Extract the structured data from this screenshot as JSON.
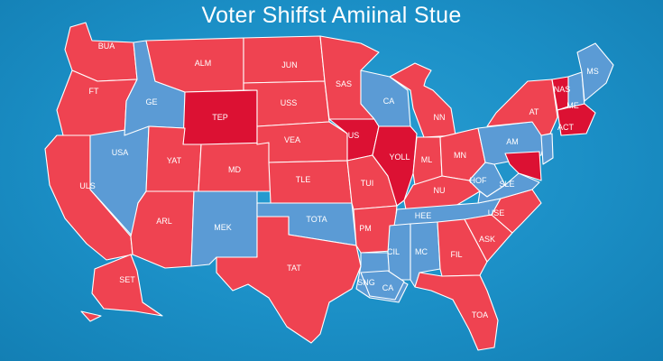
{
  "title": "Voter Shiffst Amiinal Stue",
  "colors": {
    "background": "#1a8fc3",
    "republican": "#ef4351",
    "republican_strong": "#dc1133",
    "democrat": "#5b9bd5",
    "border": "#ffffff"
  },
  "states": [
    {
      "id": "wa",
      "label": "BUA",
      "party": "rep"
    },
    {
      "id": "or",
      "label": "FT",
      "party": "rep"
    },
    {
      "id": "ca",
      "label": "ULS",
      "party": "rep"
    },
    {
      "id": "id",
      "label": "GE",
      "party": "dem"
    },
    {
      "id": "nv",
      "label": "USA",
      "party": "dem"
    },
    {
      "id": "mt",
      "label": "ALM",
      "party": "rep"
    },
    {
      "id": "wy",
      "label": "TEP",
      "party": "rep-strong"
    },
    {
      "id": "ut",
      "label": "YAT",
      "party": "rep"
    },
    {
      "id": "az",
      "label": "ARL",
      "party": "rep"
    },
    {
      "id": "co",
      "label": "MD",
      "party": "rep"
    },
    {
      "id": "nm",
      "label": "MEK",
      "party": "dem"
    },
    {
      "id": "nd",
      "label": "JUN",
      "party": "rep"
    },
    {
      "id": "sd",
      "label": "USS",
      "party": "rep"
    },
    {
      "id": "ne",
      "label": "VEA",
      "party": "rep"
    },
    {
      "id": "ks",
      "label": "TLE",
      "party": "rep"
    },
    {
      "id": "ok",
      "label": "TOTA",
      "party": "dem"
    },
    {
      "id": "tx",
      "label": "TAT",
      "party": "rep"
    },
    {
      "id": "mn",
      "label": "SAS",
      "party": "rep"
    },
    {
      "id": "ia",
      "label": "US",
      "party": "rep-strong"
    },
    {
      "id": "mo",
      "label": "TUI",
      "party": "rep"
    },
    {
      "id": "ar",
      "label": "PM",
      "party": "rep"
    },
    {
      "id": "la",
      "label": "SNG",
      "party": "dem"
    },
    {
      "id": "wi",
      "label": "CA",
      "party": "dem"
    },
    {
      "id": "il",
      "label": "YOLL",
      "party": "rep-strong"
    },
    {
      "id": "mi",
      "label": "NN",
      "party": "rep"
    },
    {
      "id": "in",
      "label": "ML",
      "party": "rep"
    },
    {
      "id": "oh",
      "label": "MN",
      "party": "rep"
    },
    {
      "id": "ky",
      "label": "NU",
      "party": "rep"
    },
    {
      "id": "tn",
      "label": "HEE",
      "party": "dem"
    },
    {
      "id": "ms",
      "label": "CIL",
      "party": "dem"
    },
    {
      "id": "al",
      "label": "MC",
      "party": "dem"
    },
    {
      "id": "ga",
      "label": "FIL",
      "party": "rep"
    },
    {
      "id": "fl",
      "label": "TOA",
      "party": "rep"
    },
    {
      "id": "sc",
      "label": "ASK",
      "party": "rep"
    },
    {
      "id": "nc",
      "label": "USE",
      "party": "rep"
    },
    {
      "id": "va",
      "label": "SLE",
      "party": "dem"
    },
    {
      "id": "wv",
      "label": "HOF",
      "party": "dem"
    },
    {
      "id": "pa",
      "label": "AM",
      "party": "dem"
    },
    {
      "id": "ny",
      "label": "AT",
      "party": "rep"
    },
    {
      "id": "md",
      "label": "",
      "party": "rep-strong"
    },
    {
      "id": "nj",
      "label": "",
      "party": "dem"
    },
    {
      "id": "vt",
      "label": "NAS",
      "party": "rep-strong"
    },
    {
      "id": "nh",
      "label": "ME",
      "party": "dem"
    },
    {
      "id": "me",
      "label": "MS",
      "party": "dem"
    },
    {
      "id": "ma",
      "label": "ACT",
      "party": "rep-strong"
    },
    {
      "id": "ak",
      "label": "SET",
      "party": "rep"
    },
    {
      "id": "la_coast",
      "label": "CA",
      "party": "dem"
    }
  ]
}
